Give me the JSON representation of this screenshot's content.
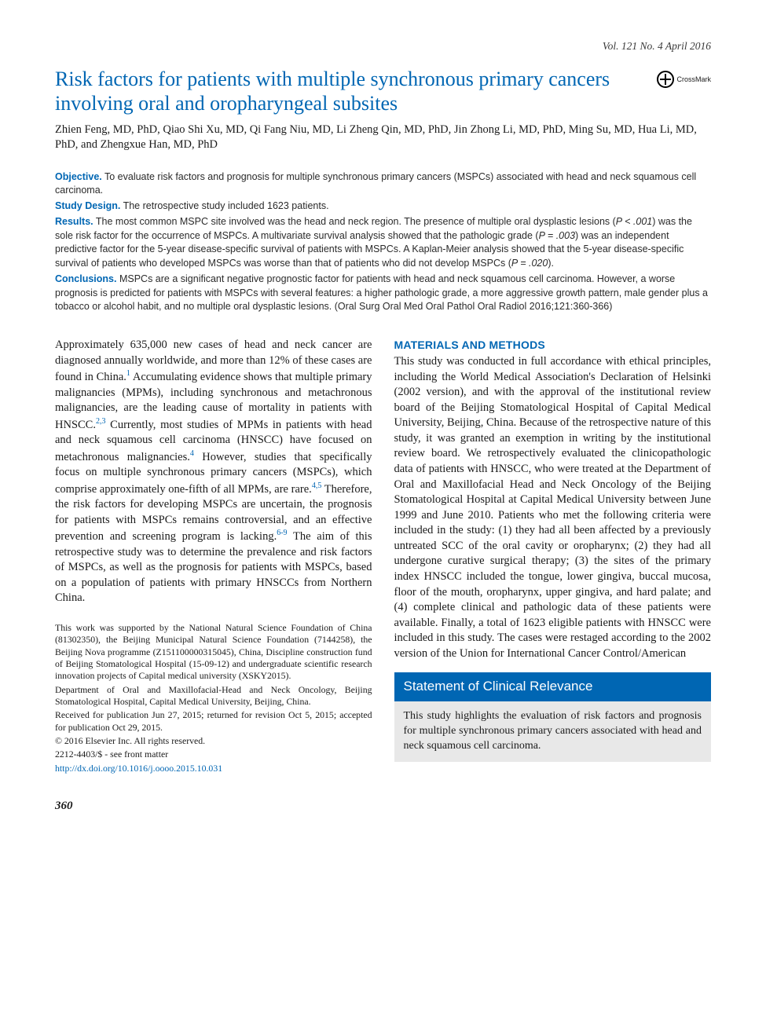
{
  "meta": {
    "issue_line": "Vol. 121 No. 4 April 2016",
    "crossmark_label": "CrossMark"
  },
  "title": "Risk factors for patients with multiple synchronous primary cancers involving oral and oropharyngeal subsites",
  "authors": "Zhien Feng, MD, PhD, Qiao Shi Xu, MD, Qi Fang Niu, MD, Li Zheng Qin, MD, PhD, Jin Zhong Li, MD, PhD, Ming Su, MD, Hua Li, MD, PhD, and Zhengxue Han, MD, PhD",
  "abstract": {
    "objective": {
      "label": "Objective.",
      "text": " To evaluate risk factors and prognosis for multiple synchronous primary cancers (MSPCs) associated with head and neck squamous cell carcinoma."
    },
    "design": {
      "label": "Study Design.",
      "text": " The retrospective study included 1623 patients."
    },
    "results": {
      "label": "Results.",
      "text_a": " The most common MSPC site involved was the head and neck region. The presence of multiple oral dysplastic lesions (",
      "p1": "P < .001",
      "text_b": ") was the sole risk factor for the occurrence of MSPCs. A multivariate survival analysis showed that the pathologic grade (",
      "p2": "P = .003",
      "text_c": ") was an independent predictive factor for the 5-year disease-specific survival of patients with MSPCs. A Kaplan-Meier analysis showed that the 5-year disease-specific survival of patients who developed MSPCs was worse than that of patients who did not develop MSPCs (",
      "p3": "P = .020",
      "text_d": ")."
    },
    "conclusions": {
      "label": "Conclusions.",
      "text": " MSPCs are a significant negative prognostic factor for patients with head and neck squamous cell carcinoma. However, a worse prognosis is predicted for patients with MSPCs with several features: a higher pathologic grade, a more aggressive growth pattern, male gender plus a tobacco or alcohol habit, and no multiple oral dysplastic lesions. (Oral Surg Oral Med Oral Pathol Oral Radiol 2016;121:360-366)"
    }
  },
  "intro": {
    "p1a": "Approximately 635,000 new cases of head and neck cancer are diagnosed annually worldwide, and more than 12% of these cases are found in China.",
    "r1": "1",
    "p1b": " Accumulating evidence shows that multiple primary malignancies (MPMs), including synchronous and metachronous malignancies, are the leading cause of mortality in patients with HNSCC.",
    "r2": "2,3",
    "p1c": " Currently, most studies of MPMs in patients with head and neck squamous cell carcinoma (HNSCC) have focused on metachronous malignancies.",
    "r3": "4",
    "p1d": " However, studies that specifically focus on multiple synchronous primary cancers (MSPCs), which comprise approximately one-fifth of all MPMs, are rare.",
    "r4": "4,5",
    "p1e": " Therefore, the risk factors for developing MSPCs are uncertain, the prognosis for patients with MSPCs remains controversial, and an effective prevention and screening program is lacking.",
    "r5": "6-9",
    "p1f": " The aim of this retrospective study was to determine the prevalence and risk factors of MSPCs, as well as the prognosis for patients with MSPCs, based on a population of patients with primary HNSCCs from Northern China."
  },
  "methods": {
    "heading": "MATERIALS AND METHODS",
    "text": "This study was conducted in full accordance with ethical principles, including the World Medical Association's Declaration of Helsinki (2002 version), and with the approval of the institutional review board of the Beijing Stomatological Hospital of Capital Medical University, Beijing, China. Because of the retrospective nature of this study, it was granted an exemption in writing by the institutional review board. We retrospectively evaluated the clinicopathologic data of patients with HNSCC, who were treated at the Department of Oral and Maxillofacial Head and Neck Oncology of the Beijing Stomatological Hospital at Capital Medical University between June 1999 and June 2010. Patients who met the following criteria were included in the study: (1) they had all been affected by a previously untreated SCC of the oral cavity or oropharynx; (2) they had all undergone curative surgical therapy; (3) the sites of the primary index HNSCC included the tongue, lower gingiva, buccal mucosa, floor of the mouth, oropharynx, upper gingiva, and hard palate; and (4) complete clinical and pathologic data of these patients were available. Finally, a total of 1623 eligible patients with HNSCC were included in this study. The cases were restaged according to the 2002 version of the Union for International Cancer Control/American"
  },
  "footnotes": {
    "funding": "This work was supported by the National Natural Science Foundation of China (81302350), the Beijing Municipal Natural Science Foundation (7144258), the Beijing Nova programme (Z151100000315045), China, Discipline construction fund of Beijing Stomatological Hospital (15-09-12) and undergraduate scientific research innovation projects of Capital medical university (XSKY2015).",
    "affiliation": "Department of Oral and Maxillofacial-Head and Neck Oncology, Beijing Stomatological Hospital, Capital Medical University, Beijing, China.",
    "history": "Received for publication Jun 27, 2015; returned for revision Oct 5, 2015; accepted for publication Oct 29, 2015.",
    "copyright": "© 2016 Elsevier Inc. All rights reserved.",
    "issn": "2212-4403/$ - see front matter",
    "doi": "http://dx.doi.org/10.1016/j.oooo.2015.10.031"
  },
  "relevance": {
    "heading": "Statement of Clinical Relevance",
    "body": "This study highlights the evaluation of risk factors and prognosis for multiple synchronous primary cancers associated with head and neck squamous cell carcinoma."
  },
  "page_number": "360",
  "colors": {
    "accent": "#0066b3",
    "text": "#1a1a1a",
    "box_bg": "#e8e8e8",
    "background": "#ffffff"
  },
  "typography": {
    "body_font": "Times New Roman",
    "sans_font": "Arial",
    "title_size_pt": 20,
    "body_size_pt": 11,
    "abstract_size_pt": 9.5,
    "footnote_size_pt": 9
  }
}
